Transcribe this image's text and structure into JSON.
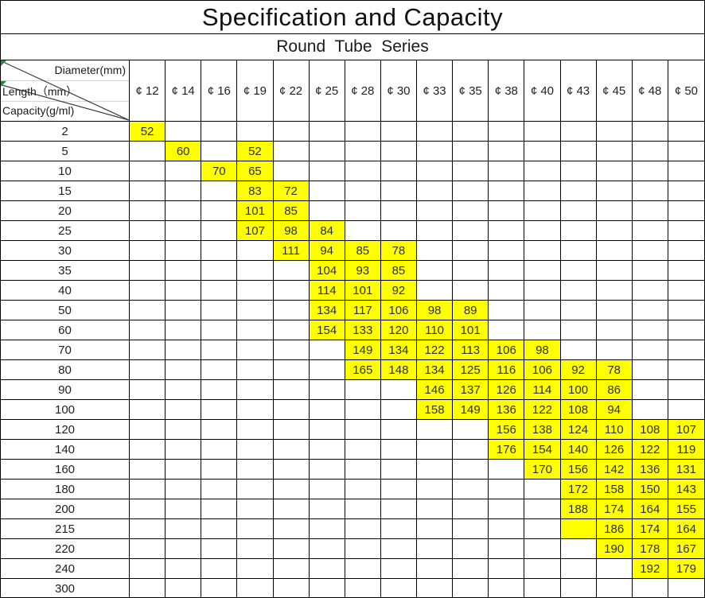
{
  "title": "Specification and Capacity",
  "subtitle": "Round  Tube  Series",
  "corner": {
    "diameter_label": "Diameter(mm)",
    "length_label": "Length（mm）",
    "capacity_label": "Capacity(g/ml)"
  },
  "columns": [
    "¢ 12",
    "¢ 14",
    "¢ 16",
    "¢ 19",
    "¢ 22",
    "¢ 25",
    "¢ 28",
    "¢ 30",
    "¢ 33",
    "¢ 35",
    "¢ 38",
    "¢ 40",
    "¢ 43",
    "¢ 45",
    "¢ 48",
    "¢ 50"
  ],
  "rows": [
    {
      "length": "2",
      "cells": [
        "52",
        null,
        null,
        null,
        null,
        null,
        null,
        null,
        null,
        null,
        null,
        null,
        null,
        null,
        null,
        null
      ]
    },
    {
      "length": "5",
      "cells": [
        null,
        "60",
        null,
        "52",
        null,
        null,
        null,
        null,
        null,
        null,
        null,
        null,
        null,
        null,
        null,
        null
      ]
    },
    {
      "length": "10",
      "cells": [
        null,
        null,
        "70",
        "65",
        null,
        null,
        null,
        null,
        null,
        null,
        null,
        null,
        null,
        null,
        null,
        null
      ]
    },
    {
      "length": "15",
      "cells": [
        null,
        null,
        null,
        "83",
        "72",
        null,
        null,
        null,
        null,
        null,
        null,
        null,
        null,
        null,
        null,
        null
      ]
    },
    {
      "length": "20",
      "cells": [
        null,
        null,
        null,
        "101",
        "85",
        null,
        null,
        null,
        null,
        null,
        null,
        null,
        null,
        null,
        null,
        null
      ]
    },
    {
      "length": "25",
      "cells": [
        null,
        null,
        null,
        "107",
        "98",
        "84",
        null,
        null,
        null,
        null,
        null,
        null,
        null,
        null,
        null,
        null
      ]
    },
    {
      "length": "30",
      "cells": [
        null,
        null,
        null,
        null,
        "111",
        "94",
        "85",
        "78",
        null,
        null,
        null,
        null,
        null,
        null,
        null,
        null
      ]
    },
    {
      "length": "35",
      "cells": [
        null,
        null,
        null,
        null,
        null,
        "104",
        "93",
        "85",
        null,
        null,
        null,
        null,
        null,
        null,
        null,
        null
      ]
    },
    {
      "length": "40",
      "cells": [
        null,
        null,
        null,
        null,
        null,
        "114",
        "101",
        "92",
        null,
        null,
        null,
        null,
        null,
        null,
        null,
        null
      ]
    },
    {
      "length": "50",
      "cells": [
        null,
        null,
        null,
        null,
        null,
        "134",
        "117",
        "106",
        "98",
        "89",
        null,
        null,
        null,
        null,
        null,
        null
      ]
    },
    {
      "length": "60",
      "cells": [
        null,
        null,
        null,
        null,
        null,
        "154",
        "133",
        "120",
        "110",
        "101",
        null,
        null,
        null,
        null,
        null,
        null
      ]
    },
    {
      "length": "70",
      "cells": [
        null,
        null,
        null,
        null,
        null,
        null,
        "149",
        "134",
        "122",
        "113",
        "106",
        "98",
        null,
        null,
        null,
        null
      ]
    },
    {
      "length": "80",
      "cells": [
        null,
        null,
        null,
        null,
        null,
        null,
        "165",
        "148",
        "134",
        "125",
        "116",
        "106",
        "92",
        "78",
        null,
        null
      ]
    },
    {
      "length": "90",
      "cells": [
        null,
        null,
        null,
        null,
        null,
        null,
        null,
        null,
        "146",
        "137",
        "126",
        "114",
        "100",
        "86",
        null,
        null
      ]
    },
    {
      "length": "100",
      "cells": [
        null,
        null,
        null,
        null,
        null,
        null,
        null,
        null,
        "158",
        "149",
        "136",
        "122",
        "108",
        "94",
        null,
        null
      ]
    },
    {
      "length": "120",
      "cells": [
        null,
        null,
        null,
        null,
        null,
        null,
        null,
        null,
        null,
        null,
        "156",
        "138",
        "124",
        "110",
        "108",
        "107"
      ]
    },
    {
      "length": "140",
      "cells": [
        null,
        null,
        null,
        null,
        null,
        null,
        null,
        null,
        null,
        null,
        "176",
        "154",
        "140",
        "126",
        "122",
        "119"
      ]
    },
    {
      "length": "160",
      "cells": [
        null,
        null,
        null,
        null,
        null,
        null,
        null,
        null,
        null,
        null,
        null,
        "170",
        "156",
        "142",
        "136",
        "131"
      ]
    },
    {
      "length": "180",
      "cells": [
        null,
        null,
        null,
        null,
        null,
        null,
        null,
        null,
        null,
        null,
        null,
        null,
        "172",
        "158",
        "150",
        "143"
      ]
    },
    {
      "length": "200",
      "cells": [
        null,
        null,
        null,
        null,
        null,
        null,
        null,
        null,
        null,
        null,
        null,
        null,
        "188",
        "174",
        "164",
        "155"
      ]
    },
    {
      "length": "215",
      "cells": [
        null,
        null,
        null,
        null,
        null,
        null,
        null,
        null,
        null,
        null,
        null,
        null,
        "",
        "186",
        "174",
        "164"
      ]
    },
    {
      "length": "220",
      "cells": [
        null,
        null,
        null,
        null,
        null,
        null,
        null,
        null,
        null,
        null,
        null,
        null,
        null,
        "190",
        "178",
        "167"
      ]
    },
    {
      "length": "240",
      "cells": [
        null,
        null,
        null,
        null,
        null,
        null,
        null,
        null,
        null,
        null,
        null,
        null,
        null,
        null,
        "192",
        "179"
      ]
    },
    {
      "length": "300",
      "cells": [
        null,
        null,
        null,
        null,
        null,
        null,
        null,
        null,
        null,
        null,
        null,
        null,
        null,
        null,
        null,
        null
      ]
    }
  ],
  "colors": {
    "highlight": "#ffff00",
    "border": "#000000",
    "grid_line": "#d4d4d4",
    "indicator_green": "#1f8a3d",
    "text": "#2e2e2e"
  }
}
